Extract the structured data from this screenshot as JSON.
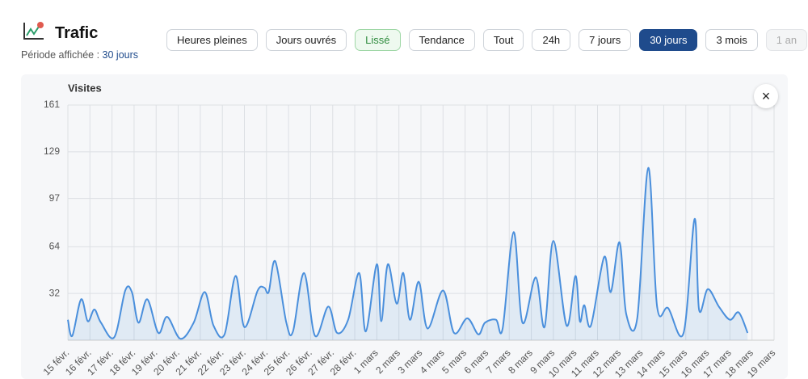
{
  "header": {
    "title": "Trafic",
    "period_label": "Période affichée :",
    "period_value": "30 jours",
    "buttons": [
      {
        "label": "Heures pleines",
        "state": "default"
      },
      {
        "label": "Jours ouvrés",
        "state": "default"
      },
      {
        "label": "Lissé",
        "state": "success"
      },
      {
        "label": "Tendance",
        "state": "default"
      },
      {
        "label": "Tout",
        "state": "default"
      },
      {
        "label": "24h",
        "state": "default"
      },
      {
        "label": "7 jours",
        "state": "default"
      },
      {
        "label": "30 jours",
        "state": "active"
      },
      {
        "label": "3 mois",
        "state": "default"
      },
      {
        "label": "1 an",
        "state": "disabled"
      }
    ]
  },
  "close_button": {
    "label": "×"
  },
  "chart_data": {
    "type": "area",
    "y_label": "Visites",
    "color": "#4a8fdc",
    "grid": true,
    "xlim": [
      0,
      32
    ],
    "ylim": [
      0,
      161
    ],
    "yticks": [
      32,
      64,
      97,
      129,
      161
    ],
    "xticks": [
      {
        "value": 0,
        "label": "15 févr."
      },
      {
        "value": 1,
        "label": "16 févr."
      },
      {
        "value": 2,
        "label": "17 févr."
      },
      {
        "value": 3,
        "label": "18 févr."
      },
      {
        "value": 4,
        "label": "19 févr."
      },
      {
        "value": 5,
        "label": "20 févr."
      },
      {
        "value": 6,
        "label": "21 févr."
      },
      {
        "value": 7,
        "label": "22 févr."
      },
      {
        "value": 8,
        "label": "23 févr."
      },
      {
        "value": 9,
        "label": "24 févr."
      },
      {
        "value": 10,
        "label": "25 févr."
      },
      {
        "value": 11,
        "label": "26 févr."
      },
      {
        "value": 12,
        "label": "27 févr."
      },
      {
        "value": 13,
        "label": "28 févr."
      },
      {
        "value": 14,
        "label": "1 mars"
      },
      {
        "value": 15,
        "label": "2 mars"
      },
      {
        "value": 16,
        "label": "3 mars"
      },
      {
        "value": 17,
        "label": "4 mars"
      },
      {
        "value": 18,
        "label": "5 mars"
      },
      {
        "value": 19,
        "label": "6 mars"
      },
      {
        "value": 20,
        "label": "7 mars"
      },
      {
        "value": 21,
        "label": "8 mars"
      },
      {
        "value": 22,
        "label": "9 mars"
      },
      {
        "value": 23,
        "label": "10 mars"
      },
      {
        "value": 24,
        "label": "11 mars"
      },
      {
        "value": 25,
        "label": "12 mars"
      },
      {
        "value": 26,
        "label": "13 mars"
      },
      {
        "value": 27,
        "label": "14 mars"
      },
      {
        "value": 28,
        "label": "15 mars"
      },
      {
        "value": 29,
        "label": "16 mars"
      },
      {
        "value": 30,
        "label": "17 mars"
      },
      {
        "value": 31,
        "label": "18 mars"
      },
      {
        "value": 32,
        "label": "19 mars"
      }
    ],
    "x": [
      0,
      0.2,
      0.6,
      0.9,
      1.2,
      1.5,
      2.1,
      2.6,
      2.9,
      3.2,
      3.6,
      4.1,
      4.5,
      5.1,
      5.7,
      6.2,
      6.6,
      7.1,
      7.6,
      8.0,
      8.6,
      8.9,
      9.1,
      9.4,
      9.9,
      10.2,
      10.7,
      11.2,
      11.8,
      12.2,
      12.7,
      13.2,
      13.5,
      14.0,
      14.2,
      14.5,
      14.9,
      15.2,
      15.5,
      15.9,
      16.3,
      17.0,
      17.5,
      18.1,
      18.6,
      18.9,
      19.4,
      19.7,
      20.2,
      20.6,
      21.2,
      21.6,
      22.0,
      22.6,
      23.0,
      23.2,
      23.4,
      23.7,
      24.3,
      24.6,
      25.0,
      25.3,
      25.8,
      26.3,
      26.7,
      27.2,
      27.9,
      28.4,
      28.6,
      29.0,
      29.5,
      30.0,
      30.4,
      30.8
    ],
    "values": [
      14,
      3,
      28,
      13,
      21,
      12,
      2,
      34,
      33,
      12,
      28,
      5,
      16,
      1,
      12,
      33,
      10,
      4,
      44,
      9,
      34,
      36,
      33,
      54,
      12,
      6,
      46,
      3,
      23,
      5,
      14,
      46,
      6,
      52,
      13,
      52,
      25,
      46,
      14,
      40,
      8,
      34,
      5,
      15,
      4,
      12,
      14,
      8,
      74,
      12,
      43,
      9,
      68,
      10,
      44,
      13,
      24,
      10,
      57,
      33,
      67,
      18,
      15,
      118,
      23,
      22,
      5,
      83,
      21,
      35,
      23,
      14,
      19,
      5
    ]
  }
}
